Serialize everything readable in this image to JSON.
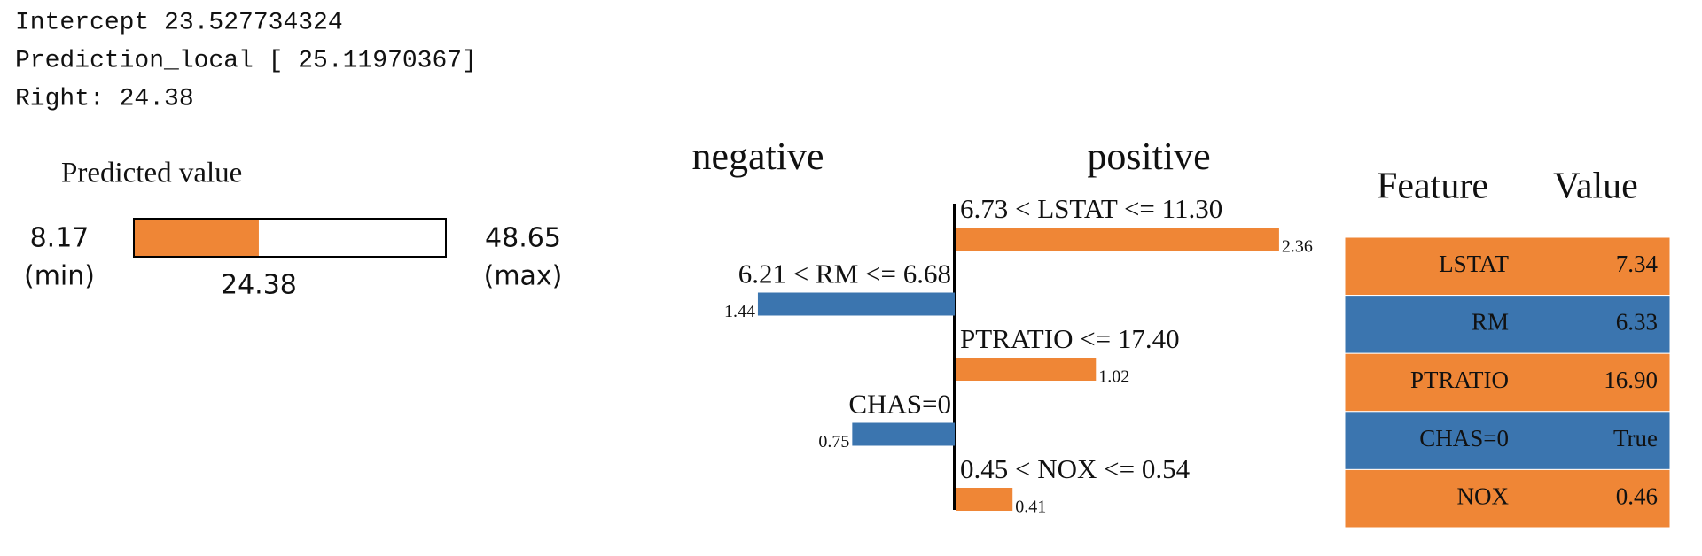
{
  "console": [
    "Intercept 23.527734324",
    "Prediction_local [ 25.11970367]",
    "Right: 24.38"
  ],
  "predicted_value": {
    "title": "Predicted value",
    "min": 8.17,
    "min_label": "(min)",
    "max": 48.65,
    "max_label": "(max)",
    "value": 24.38,
    "color": "#ef8636"
  },
  "chart_data": {
    "type": "bar",
    "negative_label": "negative",
    "positive_label": "positive",
    "negative_color": "#3b75af",
    "positive_color": "#ef8636",
    "categories": [
      "6.73 < LSTAT <= 11.30",
      "6.21 < RM <= 6.68",
      "PTRATIO <= 17.40",
      "CHAS=0",
      "0.45 < NOX <= 0.54"
    ],
    "values": [
      2.36,
      -1.44,
      1.02,
      -0.75,
      0.41
    ],
    "value_labels": [
      "2.36",
      "1.44",
      "1.02",
      "0.75",
      "0.41"
    ]
  },
  "table": {
    "header": [
      "Feature",
      "Value"
    ],
    "rows": [
      [
        "LSTAT",
        "7.34"
      ],
      [
        "RM",
        "6.33"
      ],
      [
        "PTRATIO",
        "16.90"
      ],
      [
        "CHAS=0",
        "True"
      ],
      [
        "NOX",
        "0.46"
      ]
    ]
  }
}
